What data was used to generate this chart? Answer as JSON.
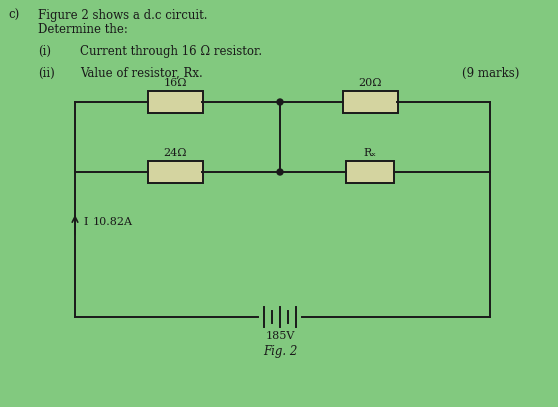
{
  "bg_color": "#82c97f",
  "title_text": "Fig. 2",
  "label_c": "c)",
  "question_line1": "Figure 2 shows a d.c circuit.",
  "question_line2": "Determine the:",
  "sub_i_num": "(i)",
  "sub_i_text": "Current through 16 Ω resistor.",
  "sub_ii_num": "(ii)",
  "sub_ii_text": "Value of resistor, Rx.",
  "marks": "(9 marks)",
  "label_16": "16Ω",
  "label_20": "20Ω",
  "label_24": "24Ω",
  "label_Rx": "Rₓ",
  "label_current": "I",
  "label_current_val": "10.82A",
  "label_voltage": "185V",
  "line_color": "#1a1a1a",
  "text_color": "#1a1a1a",
  "resistor_face": "#d4d4a0",
  "font_size_text": 8.5,
  "font_size_label": 8.0,
  "lw": 1.4
}
